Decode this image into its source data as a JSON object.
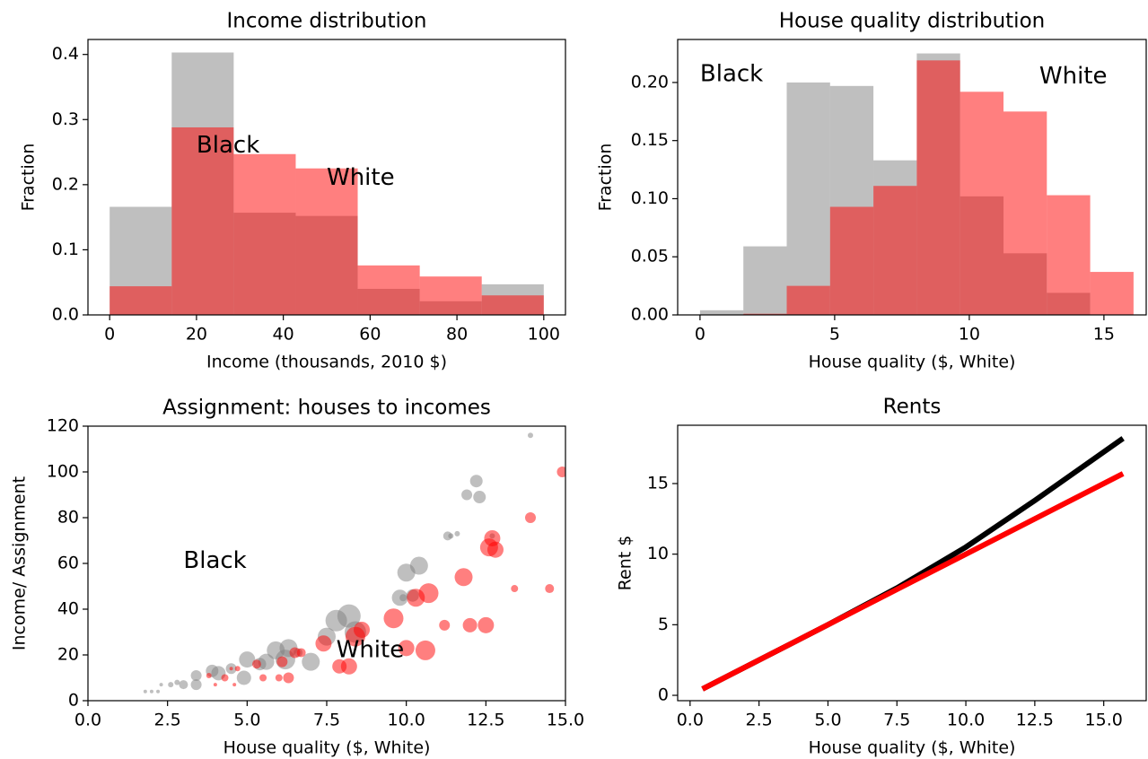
{
  "chart_data": [
    {
      "type": "histogram",
      "title": "Income distribution",
      "xlabel": "Income (thousands, 2010 $)",
      "ylabel": "Fraction",
      "bins": [
        0,
        14.29,
        28.57,
        42.86,
        57.14,
        71.43,
        85.71,
        100
      ],
      "alpha": 0.5,
      "series": [
        {
          "name": "Black",
          "color": "#808080",
          "values": [
            0.166,
            0.403,
            0.157,
            0.152,
            0.04,
            0.021,
            0.047
          ]
        },
        {
          "name": "White",
          "color": "#ff0000",
          "values": [
            0.044,
            0.288,
            0.247,
            0.225,
            0.076,
            0.059,
            0.03
          ]
        }
      ],
      "xlim": [
        -5,
        105
      ],
      "ylim": [
        0,
        0.423
      ],
      "xticks": [
        0,
        20,
        40,
        60,
        80,
        100
      ],
      "yticks": [
        {
          "value": 0,
          "label": "0.0"
        },
        0.1,
        0.2,
        0.3,
        0.4
      ]
    },
    {
      "type": "histogram",
      "title": "House quality distribution",
      "xlabel": "House quality ($, White)",
      "ylabel": "Fraction",
      "bins": [
        0,
        1.61,
        3.22,
        4.83,
        6.44,
        8.05,
        9.66,
        11.27,
        12.88,
        14.49,
        16.1
      ],
      "alpha": 0.5,
      "series": [
        {
          "name": "Black",
          "color": "#808080",
          "values": [
            0.004,
            0.059,
            0.2,
            0.197,
            0.133,
            0.225,
            0.102,
            0.053,
            0.019,
            0
          ]
        },
        {
          "name": "White",
          "color": "#ff0000",
          "values": [
            0,
            0.001,
            0.025,
            0.093,
            0.111,
            0.219,
            0.192,
            0.175,
            0.103,
            0.037
          ]
        }
      ],
      "xlim": [
        -0.83,
        16.57
      ],
      "ylim": [
        0,
        0.237
      ],
      "xticks": [
        0,
        5,
        10,
        15
      ],
      "yticks": [
        {
          "value": 0,
          "label": "0.00"
        },
        0.05,
        {
          "value": 0.1,
          "label": "0.10"
        },
        0.15,
        {
          "value": 0.2,
          "label": "0.20"
        }
      ]
    },
    {
      "type": "scatter",
      "title": "Assignment: houses to incomes",
      "xlabel": "House quality ($, White)",
      "ylabel": "Income/ Assignment",
      "alpha": 0.5,
      "series": [
        {
          "name": "Black",
          "color": "#808080",
          "x": [
            1.8,
            2.0,
            2.2,
            2.3,
            2.6,
            2.8,
            3.0,
            3.4,
            3.4,
            3.9,
            4.1,
            4.5,
            4.9,
            5.0,
            5.4,
            5.6,
            5.9,
            6.2,
            6.3,
            6.6,
            7.0,
            7.5,
            7.8,
            8.2,
            8.4,
            9.8,
            9.9,
            10.0,
            10.2,
            10.4,
            11.3,
            11.4,
            11.6,
            11.9,
            12.2,
            12.3,
            12.7,
            13.9
          ],
          "values": [
            4,
            4,
            4,
            7,
            7,
            8,
            7,
            7,
            11,
            13,
            12,
            14,
            10,
            18,
            16,
            17,
            22,
            18,
            23,
            21,
            17,
            28,
            35,
            37,
            30,
            45,
            45,
            56,
            46,
            59,
            72,
            72,
            73,
            90,
            96,
            89,
            72,
            116
          ],
          "sizes": [
            2,
            2,
            2,
            2,
            3,
            3,
            5,
            6,
            6,
            7,
            8,
            6,
            8,
            9,
            7,
            9,
            10,
            11,
            10,
            5,
            10,
            10,
            12,
            13,
            12,
            9,
            4,
            10,
            7,
            10,
            5,
            3,
            3,
            6,
            7,
            7,
            3,
            3
          ]
        },
        {
          "name": "White",
          "color": "#ff0000",
          "x": [
            3.8,
            4.0,
            4.3,
            4.5,
            4.6,
            4.7,
            5.3,
            5.5,
            6.0,
            6.1,
            6.3,
            6.5,
            6.7,
            7.4,
            7.9,
            8.2,
            8.4,
            8.6,
            9.6,
            10.0,
            10.3,
            10.6,
            10.7,
            11.2,
            11.8,
            12.0,
            12.5,
            12.6,
            12.7,
            12.8,
            13.4,
            13.9,
            14.5,
            14.9
          ],
          "values": [
            11,
            7,
            10,
            14,
            7,
            14,
            16,
            10,
            10,
            17,
            10,
            21,
            21,
            25,
            15,
            15,
            28,
            31,
            36,
            23,
            45,
            22,
            47,
            33,
            54,
            33,
            33,
            67,
            71,
            66,
            49,
            80,
            49,
            100
          ],
          "sizes": [
            3,
            2,
            4,
            2,
            2,
            3,
            5,
            4,
            4,
            6,
            6,
            6,
            5,
            9,
            8,
            9,
            11,
            9,
            11,
            9,
            10,
            11,
            11,
            6,
            10,
            8,
            9,
            10,
            9,
            9,
            4,
            6,
            5,
            6
          ]
        }
      ],
      "xlim": [
        0,
        15
      ],
      "ylim": [
        0,
        120
      ],
      "xticks": [
        {
          "value": 0,
          "label": "0.0"
        },
        2.5,
        {
          "value": 5,
          "label": "5.0"
        },
        7.5,
        {
          "value": 10,
          "label": "10.0"
        },
        12.5,
        {
          "value": 15,
          "label": "15.0"
        }
      ],
      "yticks": [
        0,
        20,
        40,
        60,
        80,
        100,
        120
      ]
    },
    {
      "type": "line",
      "title": "Rents",
      "xlabel": "House quality ($, White)",
      "ylabel": "Rent $",
      "x": [
        0.45,
        2.5,
        5,
        7.5,
        10,
        12.5,
        15.7
      ],
      "series": [
        {
          "color": "#000000",
          "values": [
            0.45,
            2.5,
            5.0,
            7.6,
            10.5,
            13.8,
            18.2
          ]
        },
        {
          "color": "#ff0000",
          "values": [
            0.45,
            2.5,
            5.0,
            7.5,
            10.0,
            12.5,
            15.7
          ]
        }
      ],
      "xlim": [
        -0.45,
        16.54
      ],
      "ylim": [
        -0.38,
        19.13
      ],
      "xticks": [
        {
          "value": 0,
          "label": "0.0"
        },
        2.5,
        {
          "value": 5,
          "label": "5.0"
        },
        7.5,
        {
          "value": 10,
          "label": "10.0"
        },
        12.5,
        {
          "value": 15,
          "label": "15.0"
        }
      ],
      "yticks": [
        0,
        5,
        10,
        15
      ]
    }
  ]
}
